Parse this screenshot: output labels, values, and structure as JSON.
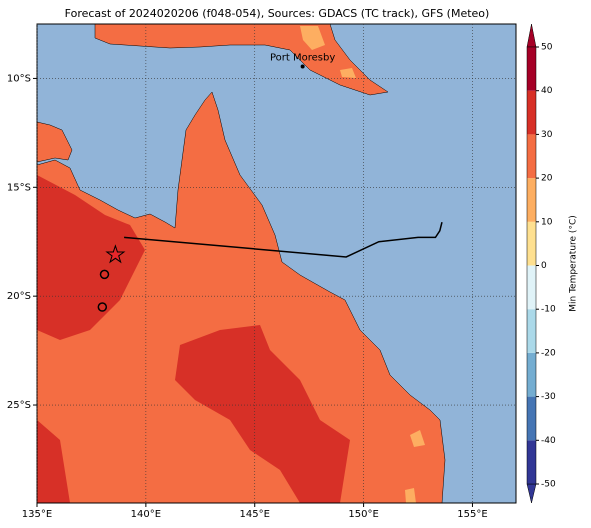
{
  "chart_data": {
    "type": "map",
    "title": "Forecast of 2024020206 (f048-054), Sources: GDACS (TC track), GFS (Meteo)",
    "xlim": [
      135,
      157
    ],
    "ylim": [
      -29.5,
      -7.5
    ],
    "xticks": [
      {
        "value": 135,
        "label": "135°E"
      },
      {
        "value": 140,
        "label": "140°E"
      },
      {
        "value": 145,
        "label": "145°E"
      },
      {
        "value": 150,
        "label": "150°E"
      },
      {
        "value": 155,
        "label": "155°E"
      }
    ],
    "yticks": [
      {
        "value": -10,
        "label": "10°S"
      },
      {
        "value": -15,
        "label": "15°S"
      },
      {
        "value": -20,
        "label": "20°S"
      },
      {
        "value": -25,
        "label": "25°S"
      }
    ],
    "grid": true,
    "places": [
      {
        "name": "Port Moresby",
        "lon": 147.2,
        "lat": -9.45
      }
    ],
    "track": {
      "lon": [
        139.0,
        149.2,
        150.7,
        152.5,
        153.3,
        153.5,
        153.6
      ],
      "lat": [
        -17.3,
        -18.2,
        -17.5,
        -17.3,
        -17.3,
        -17.0,
        -16.6
      ],
      "color": "#000000"
    },
    "storm_center": {
      "lon": 138.6,
      "lat": -18.1,
      "color": "#e8262a"
    },
    "markers": {
      "lon": [
        138.1,
        138.0
      ],
      "lat": [
        -19.0,
        -20.5
      ]
    },
    "colorbar": {
      "label": "Min Temperature (°C)",
      "lim": [
        -50,
        50
      ],
      "ticks": [
        -50,
        -40,
        -30,
        -20,
        -10,
        0,
        10,
        20,
        30,
        40,
        50
      ],
      "colors": [
        "#313695",
        "#4575b4",
        "#74add1",
        "#abd9e9",
        "#e0f3f8",
        "#ffffbf",
        "#fee090",
        "#fdae61",
        "#f46d43",
        "#d73027",
        "#a50026"
      ]
    }
  }
}
